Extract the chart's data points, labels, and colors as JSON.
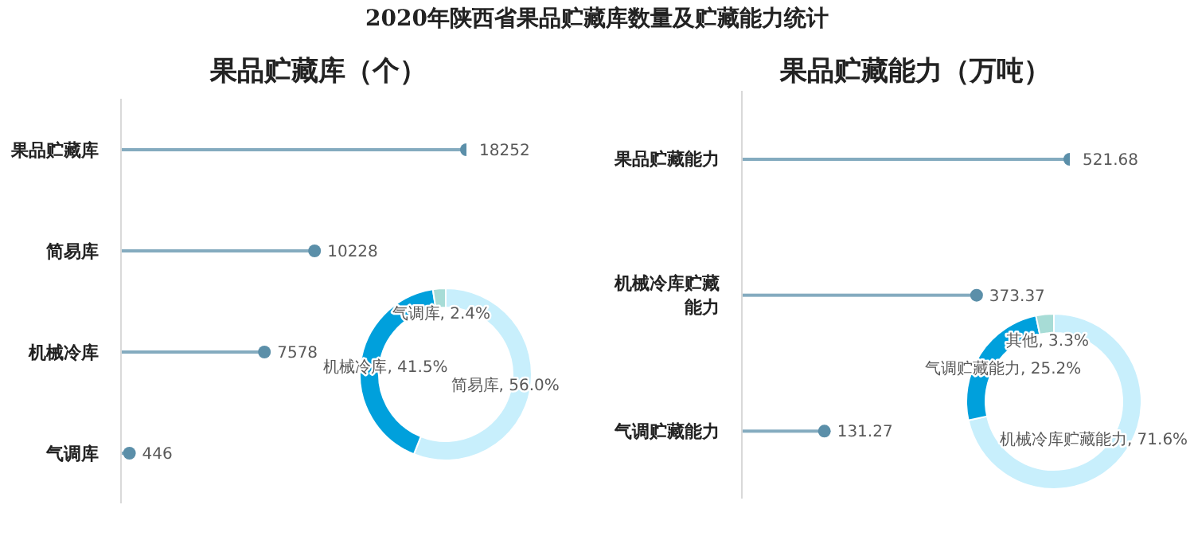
{
  "chart_data": [
    {
      "type": "lollipop",
      "title": "2020年陕西省果品贮藏库数量及贮藏能力统计",
      "subtitle": "果品贮藏库（个）",
      "orientation": "horizontal",
      "categories": [
        "果品贮藏库",
        "简易库",
        "机械冷库",
        "气调库"
      ],
      "values": [
        18252,
        10228,
        7578,
        446
      ],
      "color": "#5b8fa9",
      "marker": "circle",
      "data_labels": true,
      "tick_labels": "y"
    },
    {
      "type": "donut",
      "categories": [
        "简易库",
        "机械冷库",
        "气调库"
      ],
      "values": [
        56.0,
        41.5,
        2.4
      ],
      "colors": [
        "#c8effc",
        "#00a0dc",
        "#a7dcd6"
      ],
      "value_labels": [
        "56.0%",
        "41.5%",
        "2.4%"
      ]
    },
    {
      "type": "lollipop",
      "subtitle": "果品贮藏能力（万吨）",
      "orientation": "horizontal",
      "categories": [
        "果品贮藏能力",
        "机械冷库贮藏能力",
        "气调贮藏能力"
      ],
      "values": [
        521.68,
        373.37,
        131.27
      ],
      "color": "#5b8fa9",
      "marker": "circle",
      "data_labels": true,
      "tick_labels": "y"
    },
    {
      "type": "donut",
      "categories": [
        "机械冷库贮藏能力",
        "气调贮藏能力",
        "其他"
      ],
      "values": [
        71.6,
        25.2,
        3.3
      ],
      "colors": [
        "#c8effc",
        "#00a0dc",
        "#a7dcd6"
      ],
      "value_labels": [
        "71.6%",
        "25.2%",
        "3.3%"
      ]
    }
  ]
}
